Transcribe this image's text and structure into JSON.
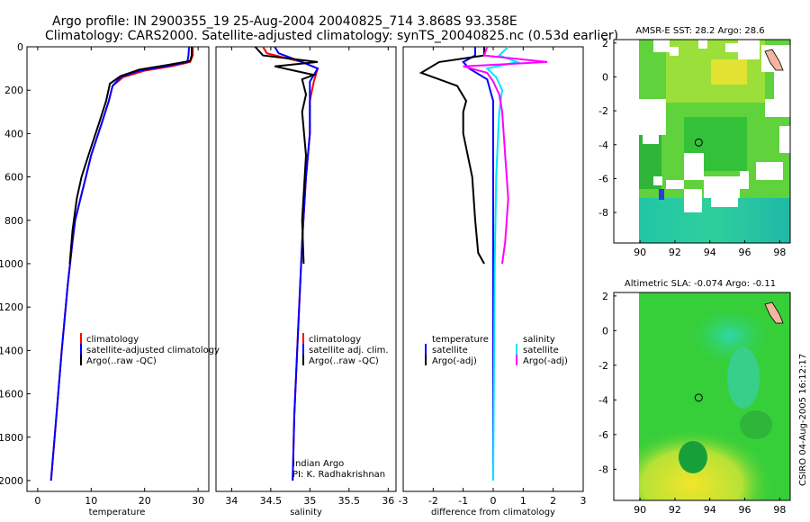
{
  "header": {
    "line1": "Argo profile: IN 2900355_19 25-Aug-2004 20040825_714 3.868S 93.358E",
    "line2": "Climatology: CARS2000. Satellite-adjusted climatology: synTS_20040825.nc (0.53d earlier)"
  },
  "side_label": "CSIRO 04-Aug-2005 16:12:17",
  "colors": {
    "climatology": "#ff0000",
    "satellite": "#0000ff",
    "argo": "#000000",
    "sal_satellite": "#00e5ff",
    "sal_argo": "#ff00ff"
  },
  "chart_data": [
    {
      "type": "line",
      "id": "temperature",
      "xlabel": "temperature",
      "ylabel": "",
      "xlim": [
        -2,
        32
      ],
      "ylim": [
        2050,
        0
      ],
      "xticks": [
        0,
        10,
        20,
        30
      ],
      "yticks": [
        0,
        200,
        400,
        600,
        800,
        1000,
        1200,
        1400,
        1600,
        1800,
        2000
      ],
      "legend": [
        "climatology",
        "satellite-adjusted climatology",
        "Argo(..raw -QC)"
      ],
      "series": [
        {
          "name": "climatology",
          "color": "climatology",
          "x": [
            29.0,
            29.0,
            28.5,
            25,
            20,
            16,
            14,
            13.3,
            12,
            10,
            9,
            8,
            7,
            6.5,
            5.6,
            4.5,
            3.5,
            2.5
          ],
          "y": [
            0,
            40,
            70,
            90,
            110,
            140,
            180,
            250,
            350,
            500,
            600,
            700,
            800,
            900,
            1100,
            1400,
            1700,
            2000
          ]
        },
        {
          "name": "satellite-adjusted climatology",
          "color": "satellite",
          "x": [
            28.3,
            28.2,
            28,
            24,
            19,
            15.5,
            14,
            13.3,
            12,
            10,
            9,
            8,
            7,
            6.5,
            5.6,
            4.5,
            3.5,
            2.5
          ],
          "y": [
            0,
            40,
            70,
            90,
            110,
            140,
            180,
            250,
            350,
            500,
            600,
            700,
            800,
            900,
            1100,
            1400,
            1700,
            2000
          ]
        },
        {
          "name": "Argo(..raw -QC)",
          "color": "argo",
          "x": [
            28.8,
            28.8,
            28.5,
            24,
            19,
            15.5,
            13.5,
            12.8,
            11.5,
            9.5,
            8.2,
            7.3,
            6.5,
            6.0
          ],
          "y": [
            0,
            40,
            65,
            85,
            105,
            135,
            170,
            250,
            350,
            500,
            600,
            700,
            850,
            1000
          ]
        }
      ]
    },
    {
      "type": "line",
      "id": "salinity",
      "xlabel": "salinity",
      "xlim": [
        33.8,
        36.1
      ],
      "ylim": [
        2050,
        0
      ],
      "xticks": [
        34,
        34.5,
        35,
        35.5,
        36
      ],
      "xticklabels": [
        "34",
        "34.5",
        "35",
        "35.5",
        "36"
      ],
      "legend": [
        "climatology",
        "satellite adj. clim.",
        "Argo(..raw -QC)"
      ],
      "annotation": [
        "Indian Argo",
        "PI: K. Radhakrishnan"
      ],
      "series": [
        {
          "name": "climatology",
          "color": "climatology",
          "x": [
            34.4,
            34.45,
            34.9,
            35.1,
            35.05,
            35.0,
            35.0,
            34.95,
            34.9,
            34.85,
            34.8,
            34.78
          ],
          "y": [
            0,
            30,
            70,
            100,
            160,
            250,
            400,
            600,
            900,
            1300,
            1700,
            2000
          ]
        },
        {
          "name": "satellite adj. clim.",
          "color": "satellite",
          "x": [
            34.55,
            34.6,
            34.9,
            35.1,
            35.0,
            35.0,
            35.0,
            34.95,
            34.9,
            34.85,
            34.8,
            34.78
          ],
          "y": [
            0,
            30,
            70,
            100,
            160,
            250,
            400,
            600,
            900,
            1300,
            1700,
            2000
          ]
        },
        {
          "name": "Argo(..raw -QC)",
          "color": "argo",
          "x": [
            34.3,
            34.4,
            35.1,
            34.55,
            34.8,
            35.05,
            34.9,
            34.95,
            34.9,
            34.95,
            34.9,
            34.92
          ],
          "y": [
            0,
            40,
            70,
            90,
            110,
            130,
            150,
            220,
            300,
            500,
            800,
            1000
          ]
        }
      ]
    },
    {
      "type": "line",
      "id": "difference",
      "xlabel": "difference from climatology",
      "xlim": [
        -3,
        3
      ],
      "ylim": [
        2050,
        0
      ],
      "xticks": [
        -3,
        -2,
        -1,
        0,
        1,
        2,
        3
      ],
      "legend_left": [
        "temperature",
        "satellite",
        "Argo(-adj)"
      ],
      "legend_right": [
        "salinity",
        "satellite",
        "Argo(-adj)"
      ],
      "series": [
        {
          "name": "temperature satellite",
          "color": "satellite",
          "x": [
            -0.6,
            -0.6,
            -1.0,
            -0.8,
            -0.2,
            0,
            0,
            0,
            0,
            0
          ],
          "y": [
            0,
            40,
            70,
            100,
            150,
            250,
            500,
            1000,
            1500,
            2000
          ]
        },
        {
          "name": "temperature Argo(-adj)",
          "color": "argo",
          "x": [
            -0.3,
            -0.3,
            -1.8,
            -2.4,
            -1.2,
            -0.9,
            -1.0,
            -1.0,
            -0.7,
            -0.6,
            -0.5,
            -0.3
          ],
          "y": [
            0,
            40,
            70,
            120,
            180,
            250,
            300,
            400,
            600,
            800,
            950,
            1000
          ]
        },
        {
          "name": "salinity satellite",
          "color": "sal_satellite",
          "x": [
            0.5,
            0.2,
            0.8,
            -0.2,
            0.1,
            0.3,
            0.2,
            0.1,
            0.05,
            0.0
          ],
          "y": [
            0,
            40,
            70,
            100,
            140,
            200,
            300,
            600,
            1000,
            2000
          ]
        },
        {
          "name": "salinity Argo(-adj)",
          "color": "sal_argo",
          "x": [
            -0.2,
            -0.3,
            1.8,
            -1.0,
            -0.2,
            0.0,
            0.2,
            0.3,
            0.4,
            0.5,
            0.4,
            0.3
          ],
          "y": [
            0,
            40,
            70,
            90,
            120,
            160,
            220,
            300,
            500,
            700,
            900,
            1000
          ]
        }
      ]
    },
    {
      "type": "heatmap",
      "id": "sst-map",
      "title": "AMSR-E SST: 28.2 Argo: 28.6",
      "xlim": [
        88.5,
        98.6
      ],
      "ylim": [
        -9.8,
        2.2
      ],
      "xticks": [
        90,
        92,
        94,
        96,
        98
      ],
      "yticks": [
        2,
        0,
        -2,
        -4,
        -6,
        -8
      ],
      "argo_position": [
        93.36,
        -3.87
      ]
    },
    {
      "type": "heatmap",
      "id": "sla-map",
      "title": "Altimetric SLA: -0.074 Argo: -0.11",
      "xlim": [
        88.5,
        98.6
      ],
      "ylim": [
        -9.8,
        2.2
      ],
      "xticks": [
        90,
        92,
        94,
        96,
        98
      ],
      "yticks": [
        2,
        0,
        -2,
        -4,
        -6,
        -8
      ],
      "argo_position": [
        93.36,
        -3.87
      ]
    }
  ]
}
